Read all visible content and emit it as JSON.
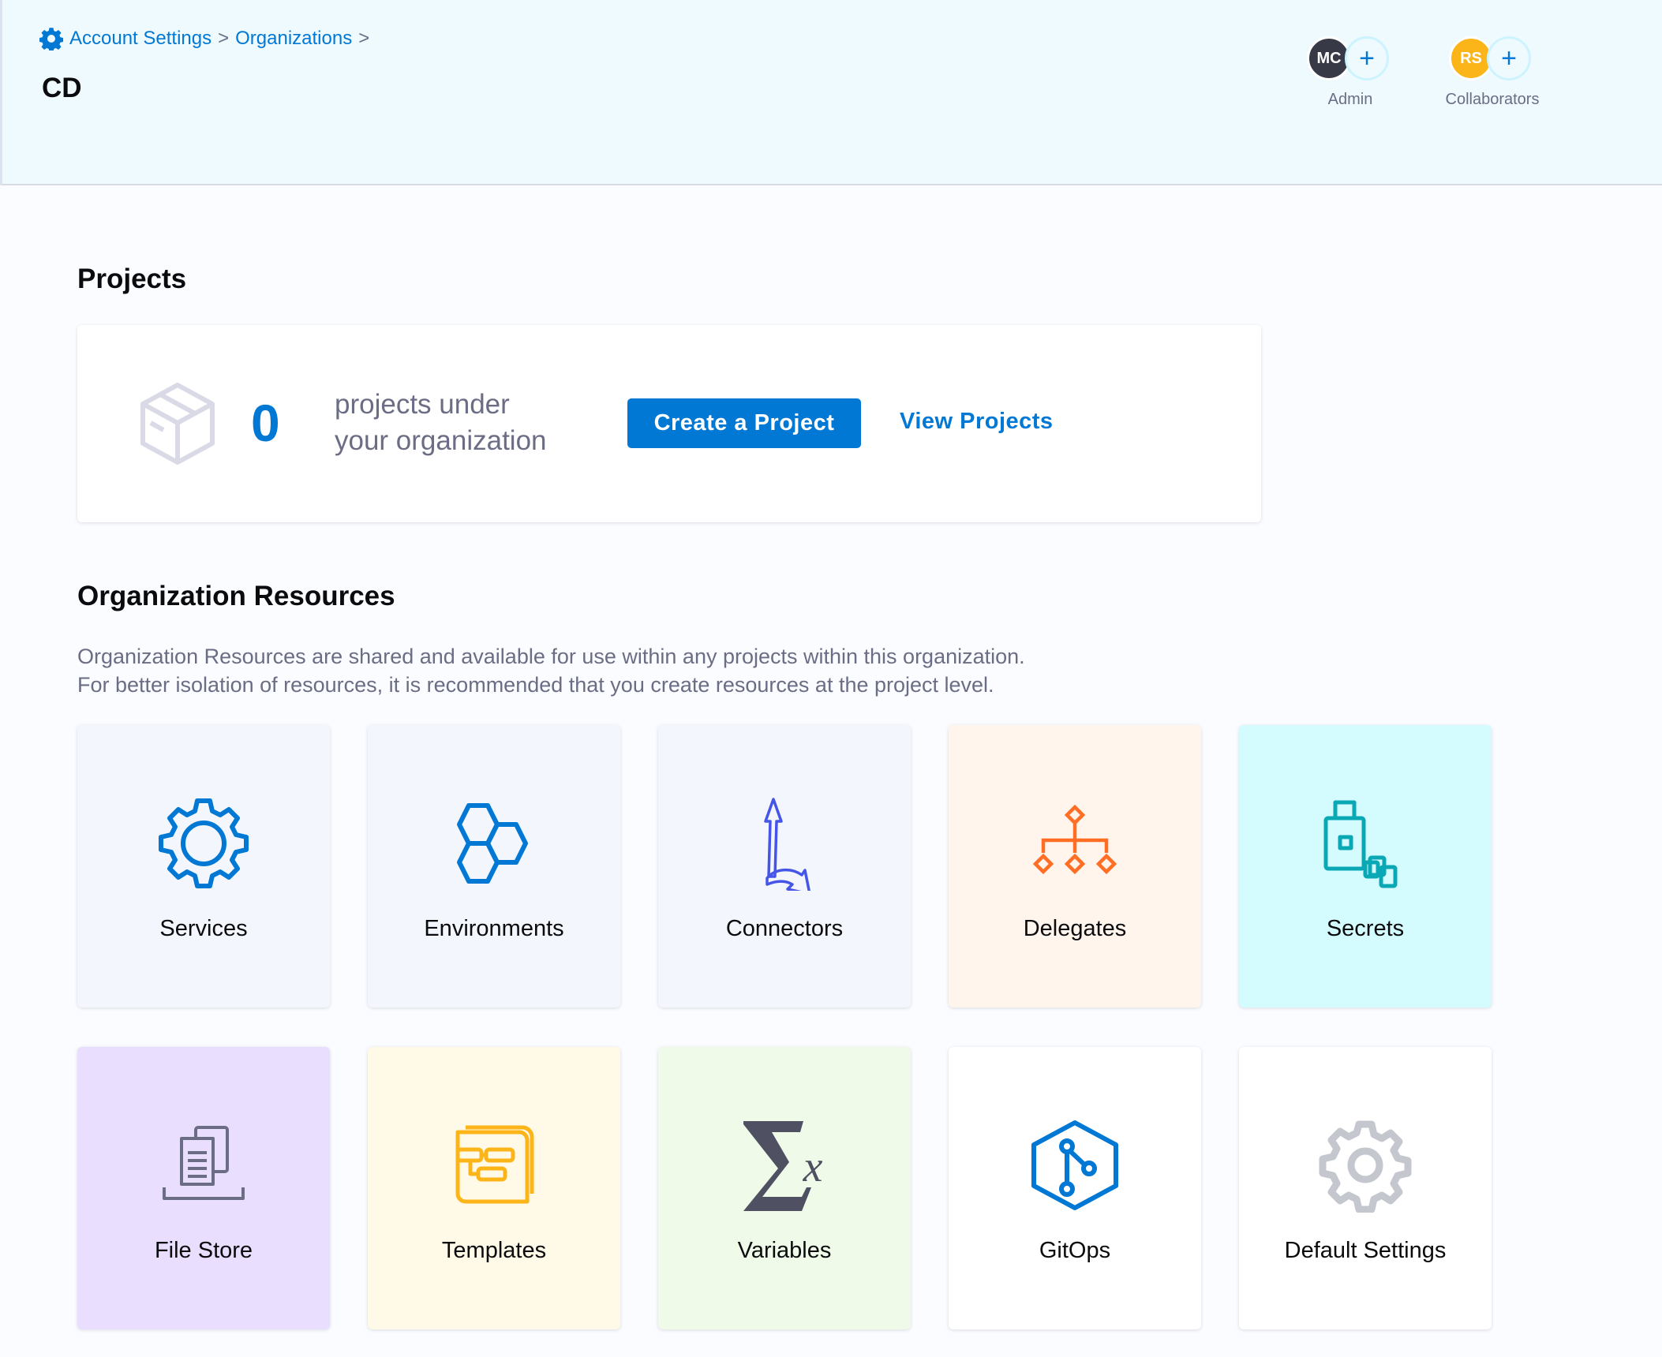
{
  "breadcrumb": {
    "items": [
      "Account Settings",
      "Organizations"
    ],
    "separator": ">"
  },
  "header": {
    "title": "CD",
    "admin": {
      "initials": "MC",
      "label": "Admin",
      "color": "#383946"
    },
    "collaborators": {
      "initials": "RS",
      "label": "Collaborators",
      "color": "#fcb519"
    },
    "add_symbol": "+"
  },
  "projects": {
    "heading": "Projects",
    "count": "0",
    "text_line1": "projects under",
    "text_line2": "your organization",
    "create_label": "Create a Project",
    "view_label": "View Projects"
  },
  "resources": {
    "heading": "Organization Resources",
    "desc_line1": "Organization Resources are shared and available for use within any projects within this organization.",
    "desc_line2": "For better isolation of resources, it is recommended that you create resources at the project level.",
    "cards": [
      {
        "label": "Services",
        "icon": "gear-icon",
        "bg": "#f3f7fd"
      },
      {
        "label": "Environments",
        "icon": "hexagons-icon",
        "bg": "#f3f7fd"
      },
      {
        "label": "Connectors",
        "icon": "connector-arrows-icon",
        "bg": "#f3f7fd"
      },
      {
        "label": "Delegates",
        "icon": "delegate-tree-icon",
        "bg": "#fff5ec"
      },
      {
        "label": "Secrets",
        "icon": "secrets-lock-icon",
        "bg": "#d4fcff"
      },
      {
        "label": "File Store",
        "icon": "file-store-icon",
        "bg": "#eadeff"
      },
      {
        "label": "Templates",
        "icon": "templates-icon",
        "bg": "#fff9e7"
      },
      {
        "label": "Variables",
        "icon": "sigma-x-icon",
        "bg": "#effae8"
      },
      {
        "label": "GitOps",
        "icon": "gitops-icon",
        "bg": "#ffffff"
      },
      {
        "label": "Default Settings",
        "icon": "settings-gear-icon",
        "bg": "#ffffff"
      }
    ]
  }
}
